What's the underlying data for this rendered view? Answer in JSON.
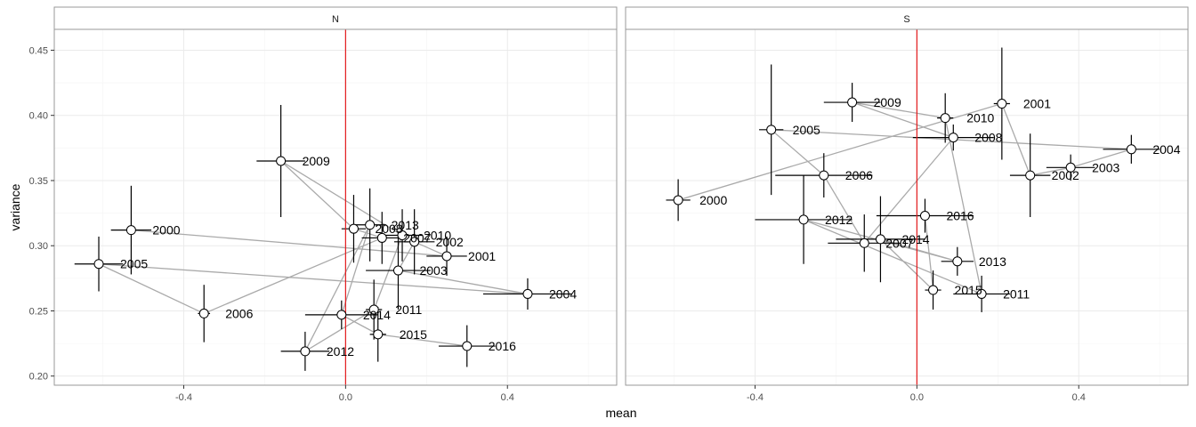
{
  "chart_data": {
    "type": "scatter",
    "xlabel": "mean",
    "ylabel": "variance",
    "xlim": [
      -0.72,
      0.67
    ],
    "ylim": [
      0.193,
      0.466
    ],
    "x_ticks": [
      -0.4,
      0.0,
      0.4
    ],
    "x_tick_labels": [
      "-0.4",
      "0.0",
      "0.4"
    ],
    "y_ticks": [
      0.2,
      0.25,
      0.3,
      0.35,
      0.4,
      0.45
    ],
    "y_tick_labels": [
      "0.20",
      "0.25",
      "0.30",
      "0.35",
      "0.40",
      "0.45"
    ],
    "grid": true,
    "reference_line_x": 0,
    "colors": {
      "reference_line": "#e41a1c",
      "path_line": "#aaaaaa",
      "error_bar": "#000000",
      "point_fill": "#ffffff",
      "point_stroke": "#000000",
      "panel_border": "#999999",
      "grid_major": "#ebebeb",
      "strip_fill": "#ffffff"
    },
    "panels": [
      {
        "name": "N",
        "points": [
          {
            "year": "2000",
            "x": -0.53,
            "y": 0.312,
            "x_err": 0.05,
            "y_err": 0.034
          },
          {
            "year": "2001",
            "x": 0.25,
            "y": 0.292,
            "x_err": 0.05,
            "y_err": 0.015
          },
          {
            "year": "2002",
            "x": 0.17,
            "y": 0.303,
            "x_err": 0.05,
            "y_err": 0.025
          },
          {
            "year": "2003",
            "x": 0.13,
            "y": 0.281,
            "x_err": 0.08,
            "y_err": 0.03
          },
          {
            "year": "2004",
            "x": 0.45,
            "y": 0.263,
            "x_err": 0.11,
            "y_err": 0.012
          },
          {
            "year": "2005",
            "x": -0.61,
            "y": 0.286,
            "x_err": 0.06,
            "y_err": 0.021
          },
          {
            "year": "2006",
            "x": -0.35,
            "y": 0.248,
            "x_err": 0.015,
            "y_err": 0.022
          },
          {
            "year": "2007",
            "x": 0.09,
            "y": 0.306,
            "x_err": 0.05,
            "y_err": 0.02
          },
          {
            "year": "2008",
            "x": 0.02,
            "y": 0.313,
            "x_err": 0.03,
            "y_err": 0.026
          },
          {
            "year": "2009",
            "x": -0.16,
            "y": 0.365,
            "x_err": 0.06,
            "y_err": 0.043
          },
          {
            "year": "2010",
            "x": 0.14,
            "y": 0.308,
            "x_err": 0.05,
            "y_err": 0.02
          },
          {
            "year": "2011",
            "x": 0.07,
            "y": 0.251,
            "x_err": 0.02,
            "y_err": 0.023
          },
          {
            "year": "2012",
            "x": -0.1,
            "y": 0.219,
            "x_err": 0.06,
            "y_err": 0.015
          },
          {
            "year": "2013",
            "x": 0.06,
            "y": 0.316,
            "x_err": 0.04,
            "y_err": 0.028
          },
          {
            "year": "2014",
            "x": -0.01,
            "y": 0.247,
            "x_err": 0.09,
            "y_err": 0.011
          },
          {
            "year": "2015",
            "x": 0.08,
            "y": 0.232,
            "x_err": 0.02,
            "y_err": 0.021
          },
          {
            "year": "2016",
            "x": 0.3,
            "y": 0.223,
            "x_err": 0.07,
            "y_err": 0.016
          }
        ]
      },
      {
        "name": "S",
        "points": [
          {
            "year": "2000",
            "x": -0.59,
            "y": 0.335,
            "x_err": 0.03,
            "y_err": 0.016
          },
          {
            "year": "2001",
            "x": 0.21,
            "y": 0.409,
            "x_err": 0.02,
            "y_err": 0.043
          },
          {
            "year": "2002",
            "x": 0.28,
            "y": 0.354,
            "x_err": 0.05,
            "y_err": 0.032
          },
          {
            "year": "2003",
            "x": 0.38,
            "y": 0.36,
            "x_err": 0.06,
            "y_err": 0.01
          },
          {
            "year": "2004",
            "x": 0.53,
            "y": 0.374,
            "x_err": 0.07,
            "y_err": 0.011
          },
          {
            "year": "2005",
            "x": -0.36,
            "y": 0.389,
            "x_err": 0.03,
            "y_err": 0.05
          },
          {
            "year": "2006",
            "x": -0.23,
            "y": 0.354,
            "x_err": 0.12,
            "y_err": 0.017
          },
          {
            "year": "2007",
            "x": -0.13,
            "y": 0.302,
            "x_err": 0.09,
            "y_err": 0.022
          },
          {
            "year": "2008",
            "x": 0.09,
            "y": 0.383,
            "x_err": 0.1,
            "y_err": 0.01
          },
          {
            "year": "2009",
            "x": -0.16,
            "y": 0.41,
            "x_err": 0.07,
            "y_err": 0.015
          },
          {
            "year": "2010",
            "x": 0.07,
            "y": 0.398,
            "x_err": 0.02,
            "y_err": 0.019
          },
          {
            "year": "2011",
            "x": 0.16,
            "y": 0.263,
            "x_err": 0.07,
            "y_err": 0.014
          },
          {
            "year": "2012",
            "x": -0.28,
            "y": 0.32,
            "x_err": 0.12,
            "y_err": 0.034
          },
          {
            "year": "2013",
            "x": 0.1,
            "y": 0.288,
            "x_err": 0.04,
            "y_err": 0.011
          },
          {
            "year": "2014",
            "x": -0.09,
            "y": 0.305,
            "x_err": 0.11,
            "y_err": 0.033
          },
          {
            "year": "2015",
            "x": 0.04,
            "y": 0.266,
            "x_err": 0.02,
            "y_err": 0.015
          },
          {
            "year": "2016",
            "x": 0.02,
            "y": 0.323,
            "x_err": 0.12,
            "y_err": 0.013
          }
        ]
      }
    ]
  }
}
